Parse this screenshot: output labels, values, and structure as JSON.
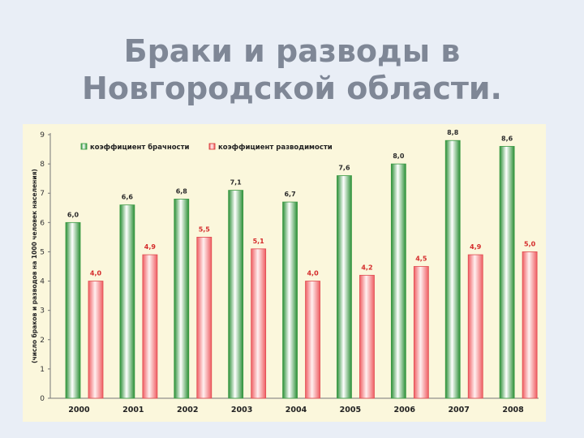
{
  "title": {
    "line1": "Браки и разводы в",
    "line2": "Новгородской области."
  },
  "colors": {
    "marriage": "#2f9a3a",
    "divorce": "#d42a2a",
    "panel": "#fbf7dc"
  },
  "chart_data": {
    "type": "bar",
    "categories": [
      "2000",
      "2001",
      "2002",
      "2003",
      "2004",
      "2005",
      "2006",
      "2007",
      "2008"
    ],
    "series": [
      {
        "name": "коэффициент брачности",
        "values": [
          6.0,
          6.6,
          6.8,
          7.1,
          6.7,
          7.6,
          8.0,
          8.8,
          8.6
        ],
        "labels": [
          "6,0",
          "6,6",
          "6,8",
          "7,1",
          "6,7",
          "7,6",
          "8,0",
          "8,8",
          "8,6"
        ]
      },
      {
        "name": "коэффициент разводимости",
        "values": [
          4.0,
          4.9,
          5.5,
          5.1,
          4.0,
          4.2,
          4.5,
          4.9,
          5.0
        ],
        "labels": [
          "4,0",
          "4,9",
          "5,5",
          "5,1",
          "4,0",
          "4,2",
          "4,5",
          "4,9",
          "5,0"
        ]
      }
    ],
    "ylabel": "(число браков и разводов на 1000 человек населения)",
    "xlabel": "",
    "ylim": [
      0,
      9
    ],
    "yticks": [
      "0",
      "1",
      "2",
      "3",
      "4",
      "5",
      "6",
      "7",
      "8",
      "9"
    ],
    "legend_position": "top",
    "grid": false
  }
}
